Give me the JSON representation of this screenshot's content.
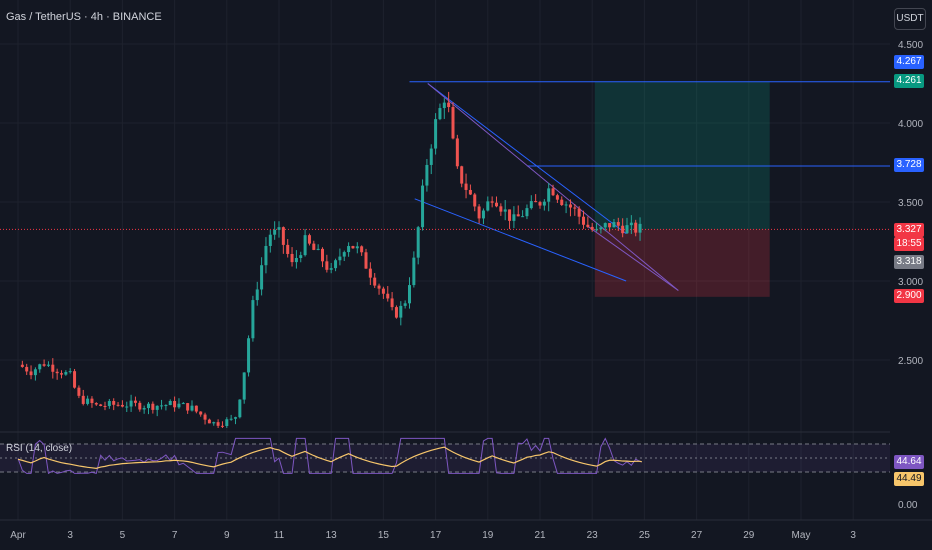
{
  "header": {
    "title": "Gas / TetherUS · 4h · BINANCE",
    "unit": "USDT"
  },
  "rsi": {
    "title": "RSI (14, close)",
    "value_rsi": "44.64",
    "value_ma": "44.49"
  },
  "price_tags": {
    "target_top": "4.267",
    "target": "4.261",
    "level": "3.728",
    "last": "3.327",
    "countdown": "18:55",
    "prev": "3.318",
    "stop": "2.900"
  },
  "colors": {
    "background": "#131722",
    "up": "#26a69a",
    "down": "#ef5350",
    "drawing": "#2962ff",
    "trend_line": "#7e57c2",
    "rsi_line": "#7e57c2",
    "rsi_ma": "#f7c66b"
  },
  "chart_data": {
    "type": "candlestick",
    "pair": "Gas / TetherUS",
    "interval": "4h",
    "exchange": "BINANCE",
    "y_ticks": [
      "4.500",
      "4.000",
      "3.500",
      "3.000",
      "2.500"
    ],
    "y_range": [
      2.3,
      4.6
    ],
    "x_ticks": [
      "Apr",
      "3",
      "5",
      "7",
      "9",
      "11",
      "13",
      "15",
      "17",
      "19",
      "21",
      "23",
      "25",
      "27",
      "29",
      "May",
      "3"
    ],
    "price_path": [
      {
        "day": 0.0,
        "price": 2.47
      },
      {
        "day": 0.5,
        "price": 2.43
      },
      {
        "day": 1.0,
        "price": 2.48
      },
      {
        "day": 1.5,
        "price": 2.44
      },
      {
        "day": 2.0,
        "price": 2.4
      },
      {
        "day": 2.3,
        "price": 2.26
      },
      {
        "day": 3.0,
        "price": 2.21
      },
      {
        "day": 4.0,
        "price": 2.22
      },
      {
        "day": 5.0,
        "price": 2.21
      },
      {
        "day": 6.0,
        "price": 2.22
      },
      {
        "day": 6.6,
        "price": 2.2
      },
      {
        "day": 7.5,
        "price": 2.1
      },
      {
        "day": 8.3,
        "price": 2.12
      },
      {
        "day": 8.6,
        "price": 2.35
      },
      {
        "day": 9.0,
        "price": 2.85
      },
      {
        "day": 9.6,
        "price": 3.3
      },
      {
        "day": 10.0,
        "price": 3.3
      },
      {
        "day": 10.5,
        "price": 3.1
      },
      {
        "day": 11.0,
        "price": 3.25
      },
      {
        "day": 11.6,
        "price": 3.15
      },
      {
        "day": 12.0,
        "price": 3.05
      },
      {
        "day": 12.6,
        "price": 3.25
      },
      {
        "day": 13.0,
        "price": 3.2
      },
      {
        "day": 13.5,
        "price": 3.05
      },
      {
        "day": 14.0,
        "price": 2.92
      },
      {
        "day": 14.4,
        "price": 2.78
      },
      {
        "day": 14.8,
        "price": 2.85
      },
      {
        "day": 15.2,
        "price": 3.15
      },
      {
        "day": 15.6,
        "price": 3.7
      },
      {
        "day": 16.0,
        "price": 4.0
      },
      {
        "day": 16.4,
        "price": 4.2
      },
      {
        "day": 16.8,
        "price": 3.7
      },
      {
        "day": 17.3,
        "price": 3.55
      },
      {
        "day": 17.7,
        "price": 3.4
      },
      {
        "day": 18.2,
        "price": 3.55
      },
      {
        "day": 18.6,
        "price": 3.45
      },
      {
        "day": 19.0,
        "price": 3.38
      },
      {
        "day": 19.5,
        "price": 3.45
      },
      {
        "day": 20.0,
        "price": 3.5
      },
      {
        "day": 20.4,
        "price": 3.6
      },
      {
        "day": 20.8,
        "price": 3.52
      },
      {
        "day": 21.3,
        "price": 3.45
      },
      {
        "day": 21.8,
        "price": 3.35
      },
      {
        "day": 22.2,
        "price": 3.3
      },
      {
        "day": 22.6,
        "price": 3.36
      },
      {
        "day": 23.0,
        "price": 3.35
      },
      {
        "day": 23.5,
        "price": 3.33
      },
      {
        "day": 23.9,
        "price": 3.327
      }
    ],
    "position": {
      "entry": 3.327,
      "target": 4.261,
      "stop": 2.9
    },
    "levels": [
      4.261,
      3.728
    ],
    "rsi_value": 44.64,
    "rsi_ma_value": 44.49
  }
}
